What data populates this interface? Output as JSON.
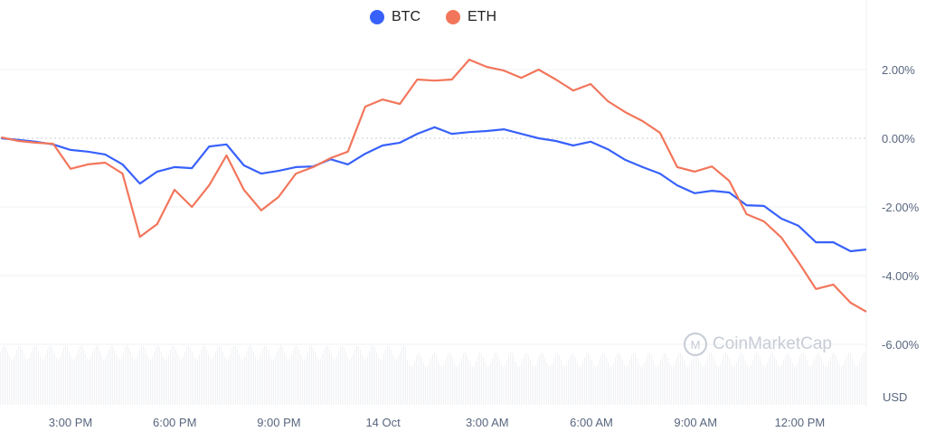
{
  "chart_data": {
    "type": "line",
    "x": [
      "13 Oct 13:00",
      "13:30",
      "14:00",
      "14:30",
      "15:00",
      "15:30",
      "16:00",
      "16:30",
      "17:00",
      "17:30",
      "18:00",
      "18:30",
      "19:00",
      "19:30",
      "20:00",
      "20:30",
      "21:00",
      "21:30",
      "22:00",
      "22:30",
      "23:00",
      "23:30",
      "14 Oct 00:00",
      "00:30",
      "01:00",
      "01:30",
      "02:00",
      "02:30",
      "03:00",
      "03:30",
      "04:00",
      "04:30",
      "05:00",
      "05:30",
      "06:00",
      "06:30",
      "07:00",
      "07:30",
      "08:00",
      "08:30",
      "09:00",
      "09:30",
      "10:00",
      "10:30",
      "11:00",
      "11:30",
      "12:00",
      "12:30",
      "13:00",
      "13:30",
      "13:55"
    ],
    "series": [
      {
        "name": "BTC",
        "color": "#3861fb",
        "values": [
          0.0,
          -0.05,
          -0.1,
          -0.18,
          -0.34,
          -0.39,
          -0.47,
          -0.76,
          -1.32,
          -0.97,
          -0.84,
          -0.87,
          -0.24,
          -0.18,
          -0.79,
          -1.03,
          -0.95,
          -0.84,
          -0.82,
          -0.61,
          -0.76,
          -0.45,
          -0.21,
          -0.13,
          0.13,
          0.32,
          0.13,
          0.18,
          0.21,
          0.26,
          0.13,
          0.0,
          -0.08,
          -0.21,
          -0.1,
          -0.32,
          -0.63,
          -0.84,
          -1.03,
          -1.37,
          -1.6,
          -1.53,
          -1.58,
          -1.95,
          -1.97,
          -2.34,
          -2.55,
          -3.03,
          -3.03,
          -3.29,
          -3.24
        ]
      },
      {
        "name": "ETH",
        "color": "#f2765b",
        "values": [
          0.03,
          -0.08,
          -0.13,
          -0.16,
          -0.89,
          -0.76,
          -0.71,
          -1.03,
          -2.87,
          -2.5,
          -1.5,
          -2.0,
          -1.37,
          -0.5,
          -1.5,
          -2.1,
          -1.71,
          -1.03,
          -0.84,
          -0.58,
          -0.39,
          0.92,
          1.13,
          1.0,
          1.71,
          1.68,
          1.71,
          2.29,
          2.08,
          1.97,
          1.76,
          2.0,
          1.71,
          1.39,
          1.58,
          1.08,
          0.76,
          0.5,
          0.16,
          -0.84,
          -0.97,
          -0.82,
          -1.24,
          -2.21,
          -2.42,
          -2.89,
          -3.61,
          -4.39,
          -4.26,
          -4.79,
          -5.05
        ]
      }
    ],
    "yticks": [
      "2.00%",
      "0.00%",
      "-2.00%",
      "-4.00%",
      "-6.00%"
    ],
    "ytick_values": [
      2,
      0,
      -2,
      -4,
      -6
    ],
    "xticks": [
      "3:00 PM",
      "6:00 PM",
      "9:00 PM",
      "14 Oct",
      "3:00 AM",
      "6:00 AM",
      "9:00 AM",
      "12:00 PM"
    ],
    "volume_axis_label": "USD",
    "ylim": [
      -6,
      2.6
    ],
    "grid": true,
    "legend": "top-center",
    "watermark": "CoinMarketCap"
  }
}
